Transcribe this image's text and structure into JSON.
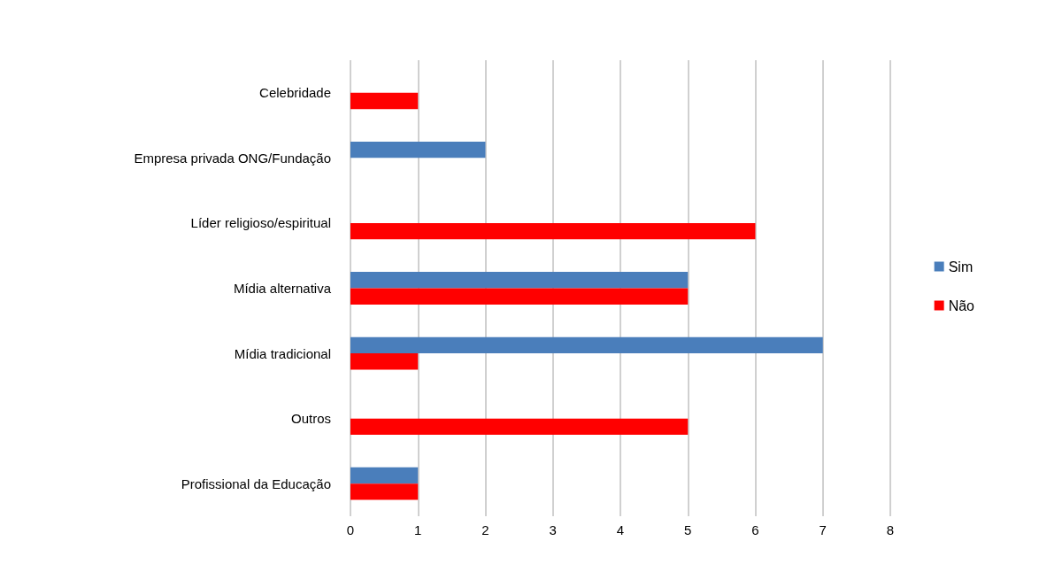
{
  "chart_data": {
    "type": "bar",
    "orientation": "horizontal",
    "categories": [
      "Celebridade",
      "Empresa privada ONG/Fundação",
      "Líder religioso/espiritual",
      "Mídia alternativa",
      "Mídia tradicional",
      "Outros",
      "Profissional da Educação"
    ],
    "series": [
      {
        "name": "Sim",
        "color": "#4a7ebb",
        "values": [
          null,
          2,
          null,
          5,
          7,
          null,
          1
        ]
      },
      {
        "name": "Não",
        "color": "#ff0000",
        "values": [
          1,
          null,
          6,
          5,
          1,
          5,
          1
        ]
      }
    ],
    "xlim": [
      0,
      8
    ],
    "xticks": [
      0,
      1,
      2,
      3,
      4,
      5,
      6,
      7,
      8
    ],
    "grid": "x",
    "legend": "right"
  }
}
